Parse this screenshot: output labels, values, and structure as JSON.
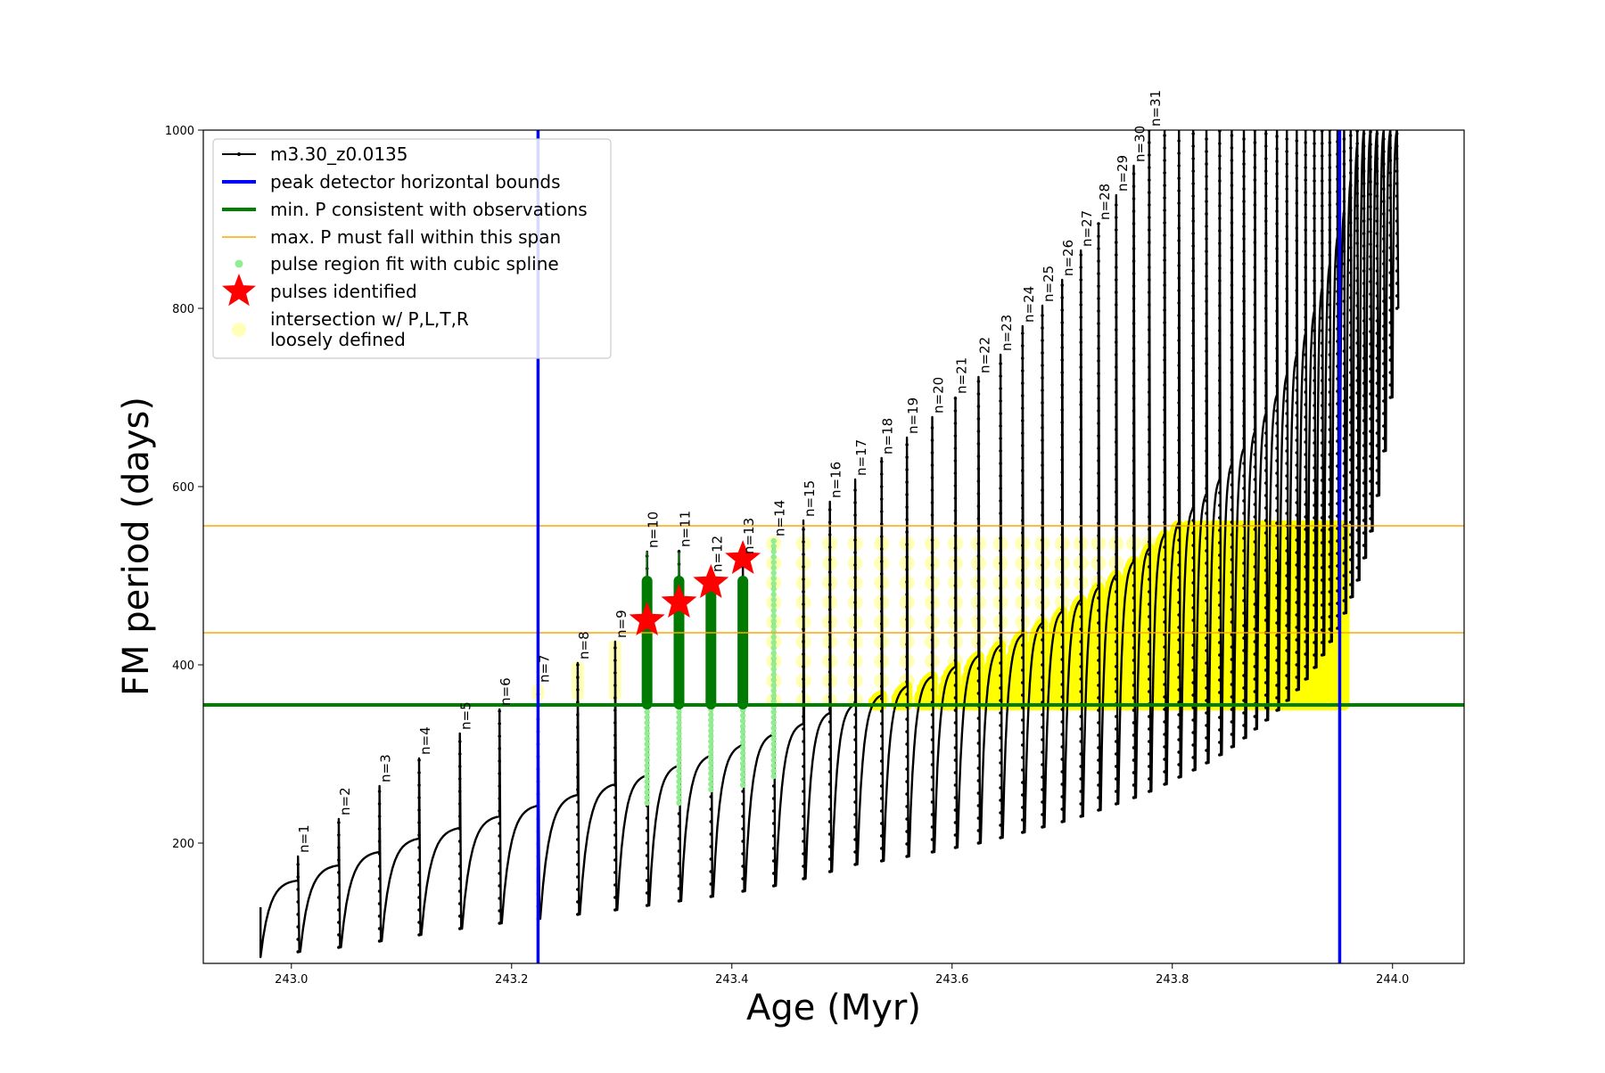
{
  "chart_data": {
    "type": "scatter",
    "xlabel": "Age (Myr)",
    "ylabel": "FM period (days)",
    "xlim": [
      242.92,
      244.065
    ],
    "ylim": [
      65,
      1000
    ],
    "xticks": [
      "243.0",
      "243.2",
      "243.4",
      "243.6",
      "243.8",
      "244.0"
    ],
    "yticks": [
      "200",
      "400",
      "600",
      "800",
      "1000"
    ],
    "grid": false,
    "legend_position": "upper-left",
    "legend": [
      {
        "label": "m3.30_z0.0135",
        "style": "line-dots",
        "color": "#000000"
      },
      {
        "label": "peak detector horizontal bounds",
        "style": "line",
        "color": "#0000ff"
      },
      {
        "label": "min. P consistent with observations",
        "style": "line",
        "color": "#008000"
      },
      {
        "label": "max. P must fall within this span",
        "style": "line-thin",
        "color": "#ffa500"
      },
      {
        "label": "pulse region fit with cubic spline",
        "style": "dot",
        "color": "#90ee90"
      },
      {
        "label": "pulses identified",
        "style": "star",
        "color": "#ff0000"
      },
      {
        "label": "intersection w/ P,L,T,R\nloosely defined",
        "style": "big-dot",
        "color": "#ffff00"
      }
    ],
    "vertical_lines": [
      {
        "x": 243.224,
        "color": "#0000ff",
        "role": "peak detector horizontal bounds"
      },
      {
        "x": 243.952,
        "color": "#0000ff",
        "role": "peak detector horizontal bounds"
      }
    ],
    "horizontal_lines": [
      {
        "y": 355,
        "color": "#008000",
        "role": "min. P consistent with observations"
      },
      {
        "y": 436,
        "color": "#ffa500",
        "role": "max. P span lower"
      },
      {
        "y": 556,
        "color": "#ffa500",
        "role": "max. P span upper"
      }
    ],
    "pulses": [
      {
        "n": "n=1",
        "age": 243.006,
        "peak": 185,
        "trough": 78,
        "pre": 158
      },
      {
        "n": "n=2",
        "age": 243.043,
        "peak": 227,
        "trough": 83,
        "pre": 175
      },
      {
        "n": "n=3",
        "age": 243.08,
        "peak": 264,
        "trough": 90,
        "pre": 190
      },
      {
        "n": "n=4",
        "age": 243.116,
        "peak": 295,
        "trough": 97,
        "pre": 205
      },
      {
        "n": "n=5",
        "age": 243.153,
        "peak": 323,
        "trough": 104,
        "pre": 217
      },
      {
        "n": "n=6",
        "age": 243.189,
        "peak": 350,
        "trough": 110,
        "pre": 230
      },
      {
        "n": "n=7",
        "age": 243.224,
        "peak": 376,
        "trough": 115,
        "pre": 242
      },
      {
        "n": "n=8",
        "age": 243.26,
        "peak": 402,
        "trough": 120,
        "pre": 254
      },
      {
        "n": "n=9",
        "age": 243.294,
        "peak": 426,
        "trough": 125,
        "pre": 266
      },
      {
        "n": "n=10",
        "age": 243.323,
        "peak": 527,
        "trough": 130,
        "pre": 276
      },
      {
        "n": "n=11",
        "age": 243.352,
        "peak": 528,
        "trough": 135,
        "pre": 287
      },
      {
        "n": "n=12",
        "age": 243.381,
        "peak": 500,
        "trough": 140,
        "pre": 298
      },
      {
        "n": "n=13",
        "age": 243.41,
        "peak": 520,
        "trough": 146,
        "pre": 310
      },
      {
        "n": "n=14",
        "age": 243.438,
        "peak": 540,
        "trough": 152,
        "pre": 322
      },
      {
        "n": "n=15",
        "age": 243.465,
        "peak": 562,
        "trough": 160,
        "pre": 334
      },
      {
        "n": "n=16",
        "age": 243.489,
        "peak": 583,
        "trough": 168,
        "pre": 346
      },
      {
        "n": "n=17",
        "age": 243.512,
        "peak": 608,
        "trough": 176,
        "pre": 356
      },
      {
        "n": "n=18",
        "age": 243.536,
        "peak": 632,
        "trough": 180,
        "pre": 366
      },
      {
        "n": "n=19",
        "age": 243.559,
        "peak": 655,
        "trough": 185,
        "pre": 376
      },
      {
        "n": "n=20",
        "age": 243.582,
        "peak": 678,
        "trough": 190,
        "pre": 387
      },
      {
        "n": "n=21",
        "age": 243.603,
        "peak": 700,
        "trough": 195,
        "pre": 398
      },
      {
        "n": "n=22",
        "age": 243.624,
        "peak": 723,
        "trough": 200,
        "pre": 410
      },
      {
        "n": "n=23",
        "age": 243.644,
        "peak": 748,
        "trough": 206,
        "pre": 422
      },
      {
        "n": "n=24",
        "age": 243.664,
        "peak": 780,
        "trough": 212,
        "pre": 434
      },
      {
        "n": "n=25",
        "age": 243.682,
        "peak": 803,
        "trough": 218,
        "pre": 447
      },
      {
        "n": "n=26",
        "age": 243.7,
        "peak": 832,
        "trough": 224,
        "pre": 460
      },
      {
        "n": "n=27",
        "age": 243.717,
        "peak": 865,
        "trough": 230,
        "pre": 473
      },
      {
        "n": "n=28",
        "age": 243.733,
        "peak": 895,
        "trough": 237,
        "pre": 487
      },
      {
        "n": "n=29",
        "age": 243.749,
        "peak": 927,
        "trough": 244,
        "pre": 501
      },
      {
        "n": "n=30",
        "age": 243.765,
        "peak": 960,
        "trough": 251,
        "pre": 516
      },
      {
        "n": "n=31",
        "age": 243.779,
        "peak": 1000,
        "trough": 258,
        "pre": 531
      }
    ],
    "late_pulses": [
      {
        "age": 243.793,
        "trough": 266,
        "pre": 546
      },
      {
        "age": 243.806,
        "trough": 274,
        "pre": 560
      },
      {
        "age": 243.819,
        "trough": 282,
        "pre": 576
      },
      {
        "age": 243.831,
        "trough": 290,
        "pre": 592
      },
      {
        "age": 243.843,
        "trough": 299,
        "pre": 608
      },
      {
        "age": 243.854,
        "trough": 308,
        "pre": 625
      },
      {
        "age": 243.865,
        "trough": 318,
        "pre": 643
      },
      {
        "age": 243.875,
        "trough": 328,
        "pre": 662
      },
      {
        "age": 243.885,
        "trough": 338,
        "pre": 682
      },
      {
        "age": 243.895,
        "trough": 349,
        "pre": 703
      },
      {
        "age": 243.904,
        "trough": 360,
        "pre": 725
      },
      {
        "age": 243.913,
        "trough": 372,
        "pre": 748
      },
      {
        "age": 243.921,
        "trough": 384,
        "pre": 772
      },
      {
        "age": 243.929,
        "trough": 397,
        "pre": 797
      },
      {
        "age": 243.936,
        "trough": 411,
        "pre": 823
      },
      {
        "age": 243.943,
        "trough": 426,
        "pre": 850
      },
      {
        "age": 243.95,
        "trough": 441,
        "pre": 880
      },
      {
        "age": 243.956,
        "trough": 458,
        "pre": 910
      },
      {
        "age": 243.962,
        "trough": 476,
        "pre": 945
      },
      {
        "age": 243.968,
        "trough": 495,
        "pre": 985
      },
      {
        "age": 243.974,
        "trough": 520,
        "pre": 1000
      },
      {
        "age": 243.98,
        "trough": 550,
        "pre": 1000
      },
      {
        "age": 243.986,
        "trough": 590,
        "pre": 1000
      },
      {
        "age": 243.992,
        "trough": 640,
        "pre": 1000
      },
      {
        "age": 243.998,
        "trough": 700,
        "pre": 1000
      },
      {
        "age": 244.004,
        "trough": 800,
        "pre": 1000
      }
    ],
    "track_start": {
      "age": 242.972,
      "period": 128
    },
    "identified_pulses": [
      {
        "age": 243.323,
        "period": 450
      },
      {
        "age": 243.352,
        "period": 470
      },
      {
        "age": 243.381,
        "period": 492
      },
      {
        "age": 243.41,
        "period": 519
      }
    ],
    "cubic_spline_regions": [
      {
        "age": 243.323,
        "low": 245,
        "high": 495
      },
      {
        "age": 243.352,
        "low": 245,
        "high": 495
      },
      {
        "age": 243.381,
        "low": 260,
        "high": 495
      },
      {
        "age": 243.41,
        "low": 265,
        "high": 495
      },
      {
        "age": 243.438,
        "low": 275,
        "high": 540
      }
    ],
    "strong_match_bands": [
      {
        "age": 243.323,
        "low": 355,
        "high": 495
      },
      {
        "age": 243.352,
        "low": 355,
        "high": 495
      },
      {
        "age": 243.381,
        "low": 355,
        "high": 495
      },
      {
        "age": 243.41,
        "low": 355,
        "high": 495
      }
    ]
  }
}
